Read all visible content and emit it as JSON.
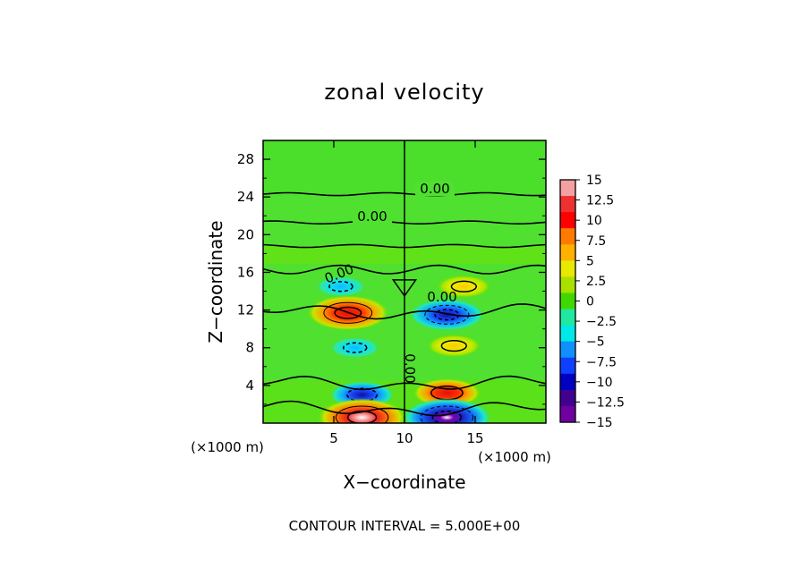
{
  "chart_data": {
    "type": "heatmap",
    "title": "zonal velocity",
    "xlabel": "X−coordinate",
    "ylabel": "Z−coordinate",
    "x_unit": "(×1000 m)",
    "y_unit": "(×1000 m)",
    "x_range": [
      0,
      20
    ],
    "y_range": [
      0,
      30
    ],
    "x_ticks": [
      5,
      10,
      15
    ],
    "y_ticks": [
      4,
      8,
      12,
      16,
      20,
      24,
      28
    ],
    "colorbar": {
      "ticks": [
        "15",
        "12.5",
        "10",
        "7.5",
        "5",
        "2.5",
        "0",
        "−2.5",
        "−5",
        "−7.5",
        "−10",
        "−12.5",
        "−15"
      ],
      "range": [
        -15,
        15
      ],
      "colors": [
        "#f4a0a0",
        "#ee3030",
        "#ff0000",
        "#ff7a00",
        "#ffb000",
        "#e8e800",
        "#a8e000",
        "#40d800",
        "#20e8a0",
        "#00e8e8",
        "#1090ff",
        "#1040ff",
        "#0000c0",
        "#400090",
        "#7000a0"
      ]
    },
    "contour_labels": [
      "0.00",
      "0.00",
      "0.00",
      "0.00",
      "0.00"
    ],
    "contour_interval_text": "CONTOUR INTERVAL = 5.000E+00",
    "features": [
      {
        "x": 6.0,
        "z": 11.7,
        "value": 12,
        "sign": "positive"
      },
      {
        "x": 13.0,
        "z": 11.5,
        "value": -10,
        "sign": "negative"
      },
      {
        "x": 5.5,
        "z": 14.5,
        "value": -3,
        "sign": "negative"
      },
      {
        "x": 14.2,
        "z": 14.5,
        "value": 4,
        "sign": "positive"
      },
      {
        "x": 6.5,
        "z": 8.0,
        "value": -3,
        "sign": "negative"
      },
      {
        "x": 13.5,
        "z": 8.2,
        "value": 4,
        "sign": "positive"
      },
      {
        "x": 7.0,
        "z": 3.0,
        "value": -7,
        "sign": "negative"
      },
      {
        "x": 13.0,
        "z": 3.2,
        "value": 8,
        "sign": "positive"
      },
      {
        "x": 7.0,
        "z": 0.6,
        "value": 14,
        "sign": "positive"
      },
      {
        "x": 13.0,
        "z": 0.6,
        "value": -14,
        "sign": "negative"
      }
    ]
  }
}
